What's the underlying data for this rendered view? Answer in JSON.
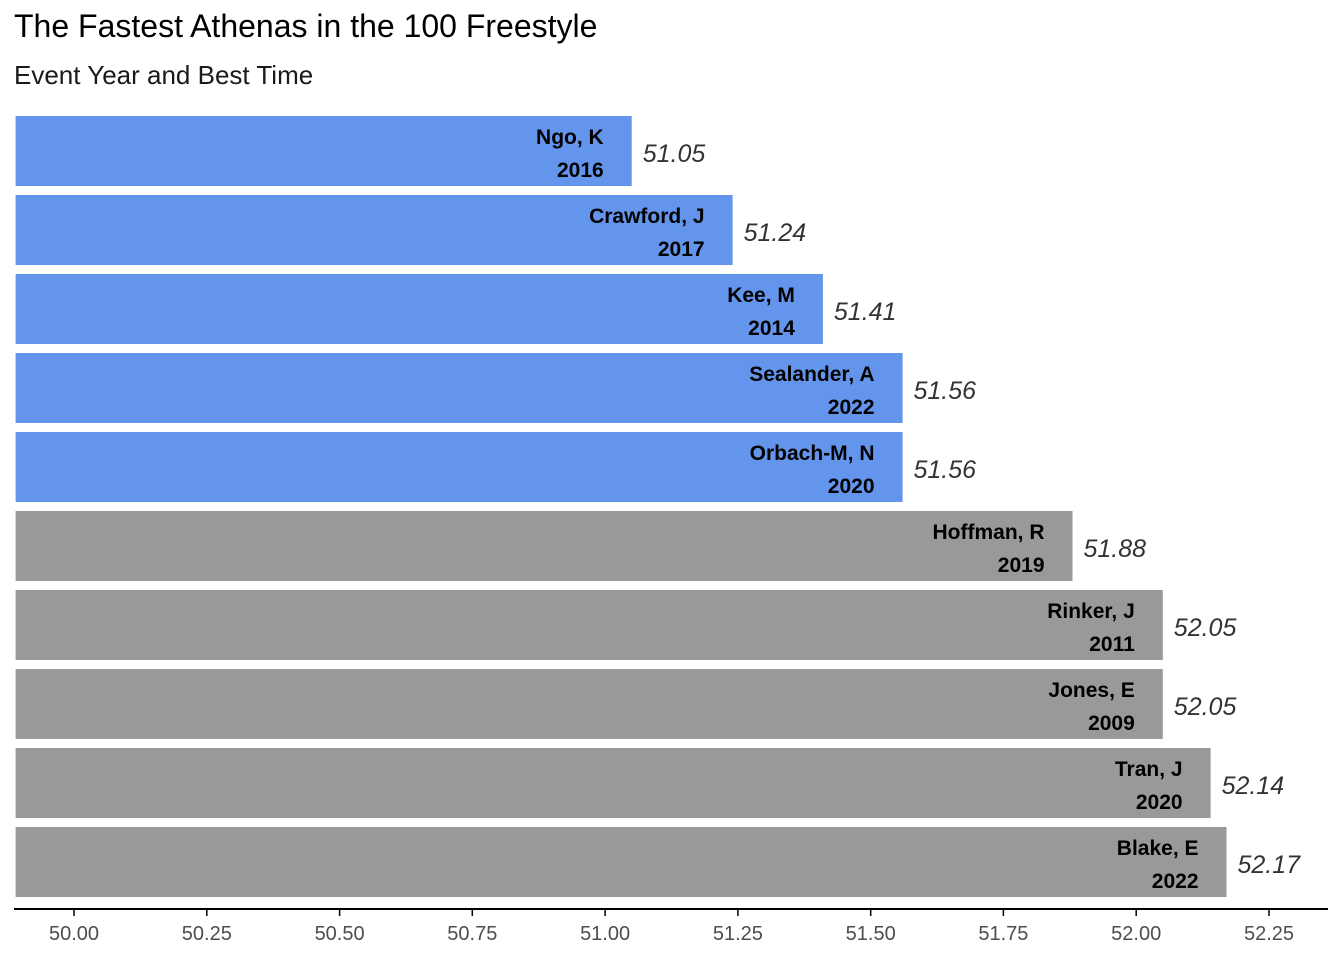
{
  "title": "The Fastest Athenas in the 100 Freestyle",
  "subtitle": "Event Year and Best Time",
  "colors": {
    "highlight": "#6495ED",
    "other": "#999999",
    "axis": "#000000",
    "tick_text": "#4d4d4d",
    "value_text": "#333333"
  },
  "chart_data": {
    "type": "bar",
    "orientation": "horizontal",
    "title": "The Fastest Athenas in the 100 Freestyle",
    "subtitle": "Event Year and Best Time",
    "xlabel": "",
    "ylabel": "",
    "xlim": [
      50.0,
      52.25
    ],
    "bar_base": 49.89,
    "grid": false,
    "legend": "none",
    "ticks": [
      "50.00",
      "50.25",
      "50.50",
      "50.75",
      "51.00",
      "51.25",
      "51.50",
      "51.75",
      "52.00",
      "52.25"
    ],
    "bars": [
      {
        "name": "Ngo, K",
        "year": "2016",
        "time": 51.05,
        "time_label": "51.05",
        "highlight": true
      },
      {
        "name": "Crawford, J",
        "year": "2017",
        "time": 51.24,
        "time_label": "51.24",
        "highlight": true
      },
      {
        "name": "Kee, M",
        "year": "2014",
        "time": 51.41,
        "time_label": "51.41",
        "highlight": true
      },
      {
        "name": "Sealander, A",
        "year": "2022",
        "time": 51.56,
        "time_label": "51.56",
        "highlight": true
      },
      {
        "name": "Orbach-M, N",
        "year": "2020",
        "time": 51.56,
        "time_label": "51.56",
        "highlight": true
      },
      {
        "name": "Hoffman, R",
        "year": "2019",
        "time": 51.88,
        "time_label": "51.88",
        "highlight": false
      },
      {
        "name": "Rinker, J",
        "year": "2011",
        "time": 52.05,
        "time_label": "52.05",
        "highlight": false
      },
      {
        "name": "Jones, E",
        "year": "2009",
        "time": 52.05,
        "time_label": "52.05",
        "highlight": false
      },
      {
        "name": "Tran, J",
        "year": "2020",
        "time": 52.14,
        "time_label": "52.14",
        "highlight": false
      },
      {
        "name": "Blake, E",
        "year": "2022",
        "time": 52.17,
        "time_label": "52.17",
        "highlight": false
      }
    ]
  }
}
